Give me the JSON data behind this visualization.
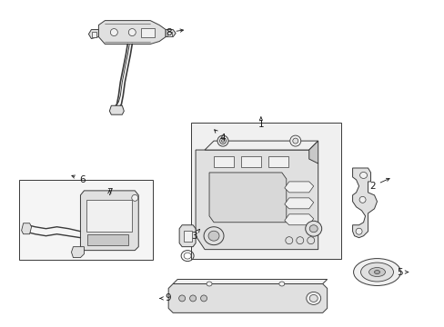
{
  "bg_color": "#ffffff",
  "line_color": "#3a3a3a",
  "fill_light": "#f0f0f0",
  "fill_mid": "#e0e0e0",
  "fill_dark": "#c8c8c8",
  "label_color": "#1a1a1a",
  "fig_width": 4.89,
  "fig_height": 3.6,
  "dpi": 100,
  "lw": 0.7,
  "label_fs": 7.5
}
